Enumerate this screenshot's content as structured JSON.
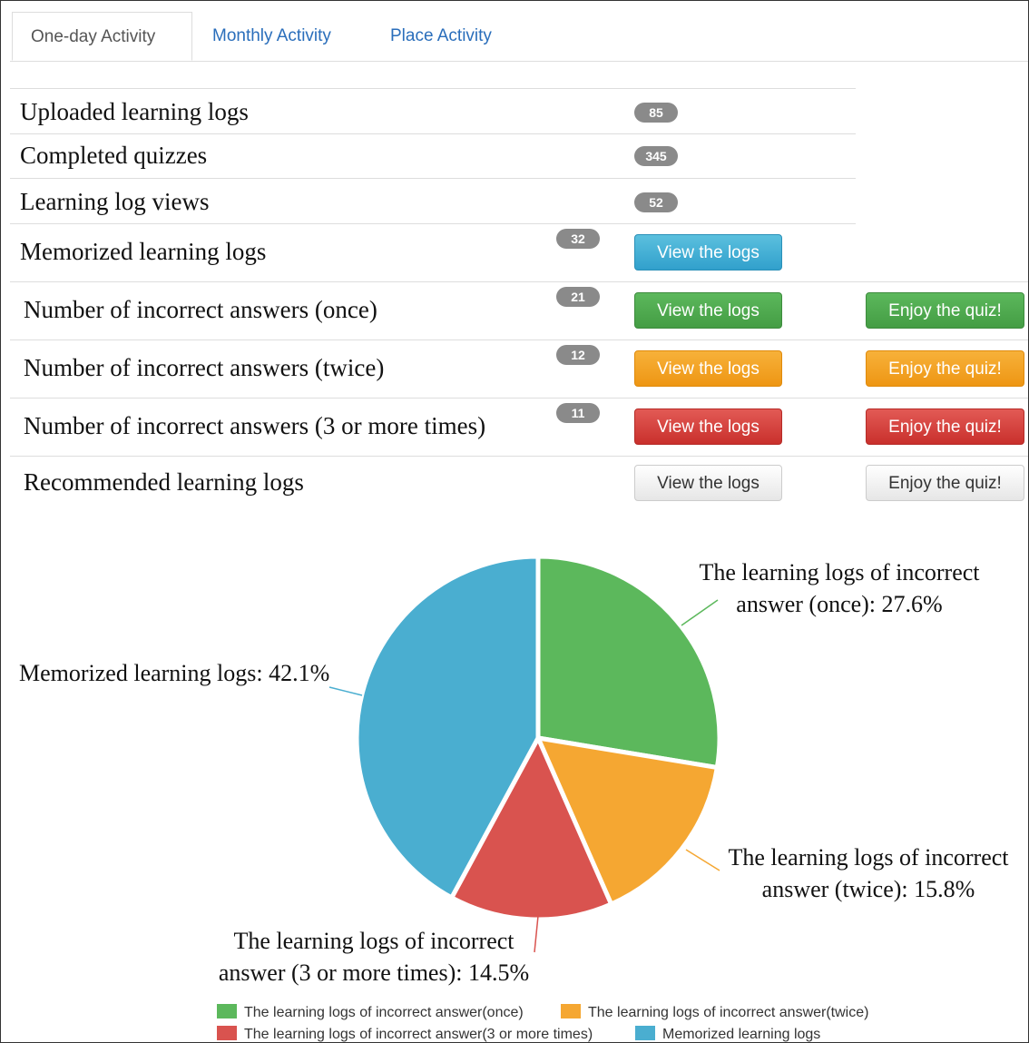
{
  "tabs": [
    "One-day Activity",
    "Monthly Activity",
    "Place Activity"
  ],
  "rows": [
    {
      "label": "Uploaded learning logs",
      "count": 85
    },
    {
      "label": "Completed quizzes",
      "count": 345
    },
    {
      "label": "Learning log views",
      "count": 52
    },
    {
      "label": "Memorized learning logs",
      "count": 32,
      "view": "View the logs"
    },
    {
      "label": "Number of incorrect answers (once)",
      "count": 21,
      "view": "View the logs",
      "quiz": "Enjoy the quiz!"
    },
    {
      "label": "Number of incorrect answers (twice)",
      "count": 12,
      "view": "View the logs",
      "quiz": "Enjoy the quiz!"
    },
    {
      "label": "Number of incorrect answers (3 or more times)",
      "count": 11,
      "view": "View the logs",
      "quiz": "Enjoy the quiz!"
    },
    {
      "label": "Recommended learning logs",
      "view": "View the logs",
      "quiz": "Enjoy the quiz!"
    }
  ],
  "chart_data": {
    "type": "pie",
    "categories": [
      "The learning logs of incorrect answer(once)",
      "The learning logs of incorrect answer(twice)",
      "The learning logs of incorrect answer(3 or more times)",
      "Memorized learning logs"
    ],
    "values": [
      27.6,
      15.8,
      14.5,
      42.1
    ],
    "value_labels": [
      "The learning logs of incorrect answer (once): 27.6%",
      "The learning logs of incorrect answer (twice): 15.8%",
      "The learning logs of incorrect answer (3 or more times): 14.5%",
      "Memorized learning logs: 42.1%"
    ],
    "colors": [
      "#5cb85c",
      "#f5a732",
      "#d9534f",
      "#4aaed0"
    ]
  }
}
